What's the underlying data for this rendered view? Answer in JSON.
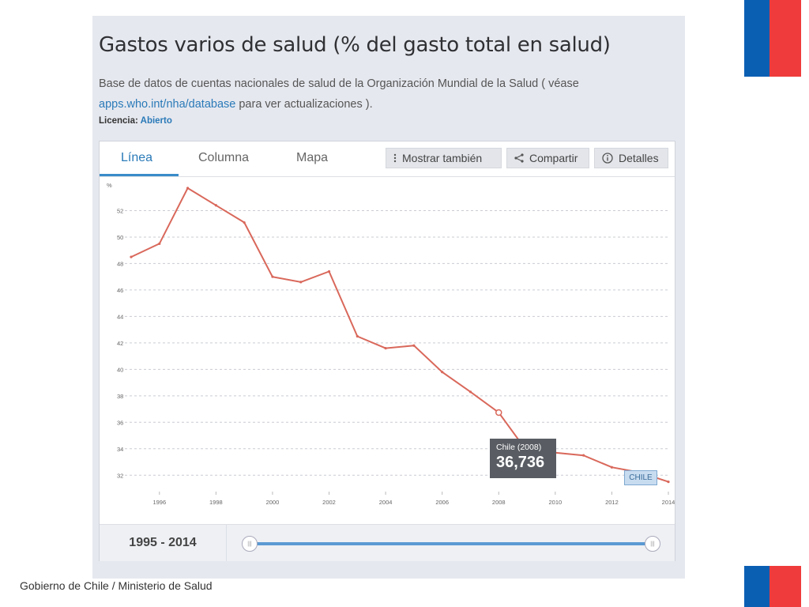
{
  "title": "Gastos varios de salud (% del gasto total en salud)",
  "description_prefix": "Base de datos de cuentas nacionales de salud de la Organización Mundial de la Salud ( véase ",
  "description_link": "apps.who.int/nha/database",
  "description_suffix": " para ver actualizaciones ).",
  "license_label": "Licencia:",
  "license_value": "Abierto",
  "tabs": [
    "Línea",
    "Columna",
    "Mapa"
  ],
  "buttons": {
    "show_also": "Mostrar también",
    "share": "Compartir",
    "details": "Detalles"
  },
  "tooltip": {
    "label": "Chile (2008)",
    "value": "36,736"
  },
  "series_tag": "CHILE",
  "range_label": "1995 - 2014",
  "footer": "Gobierno de Chile / Ministerio de Salud",
  "colors": {
    "series": "#d9685b",
    "accent": "#2a7ab8",
    "flag_blue": "#0b5fb3",
    "flag_red": "#ef3b3b"
  },
  "chart_data": {
    "type": "line",
    "ylabel": "%",
    "ylim": [
      31,
      54
    ],
    "yticks": [
      32,
      34,
      36,
      38,
      40,
      42,
      44,
      46,
      48,
      50,
      52
    ],
    "xticks": [
      1996,
      1998,
      2000,
      2002,
      2004,
      2006,
      2008,
      2010,
      2012,
      2014
    ],
    "grid": true,
    "series": [
      {
        "name": "Chile",
        "x": [
          1995,
          1996,
          1997,
          1998,
          1999,
          2000,
          2001,
          2002,
          2003,
          2004,
          2005,
          2006,
          2007,
          2008,
          2009,
          2010,
          2011,
          2012,
          2013,
          2014
        ],
        "y": [
          48.5,
          49.5,
          53.7,
          52.4,
          51.1,
          47.0,
          46.6,
          47.4,
          42.5,
          41.6,
          41.8,
          39.8,
          38.3,
          36.736,
          33.8,
          33.7,
          33.5,
          32.6,
          32.2,
          31.5
        ]
      }
    ],
    "highlight": {
      "x": 2008
    }
  }
}
